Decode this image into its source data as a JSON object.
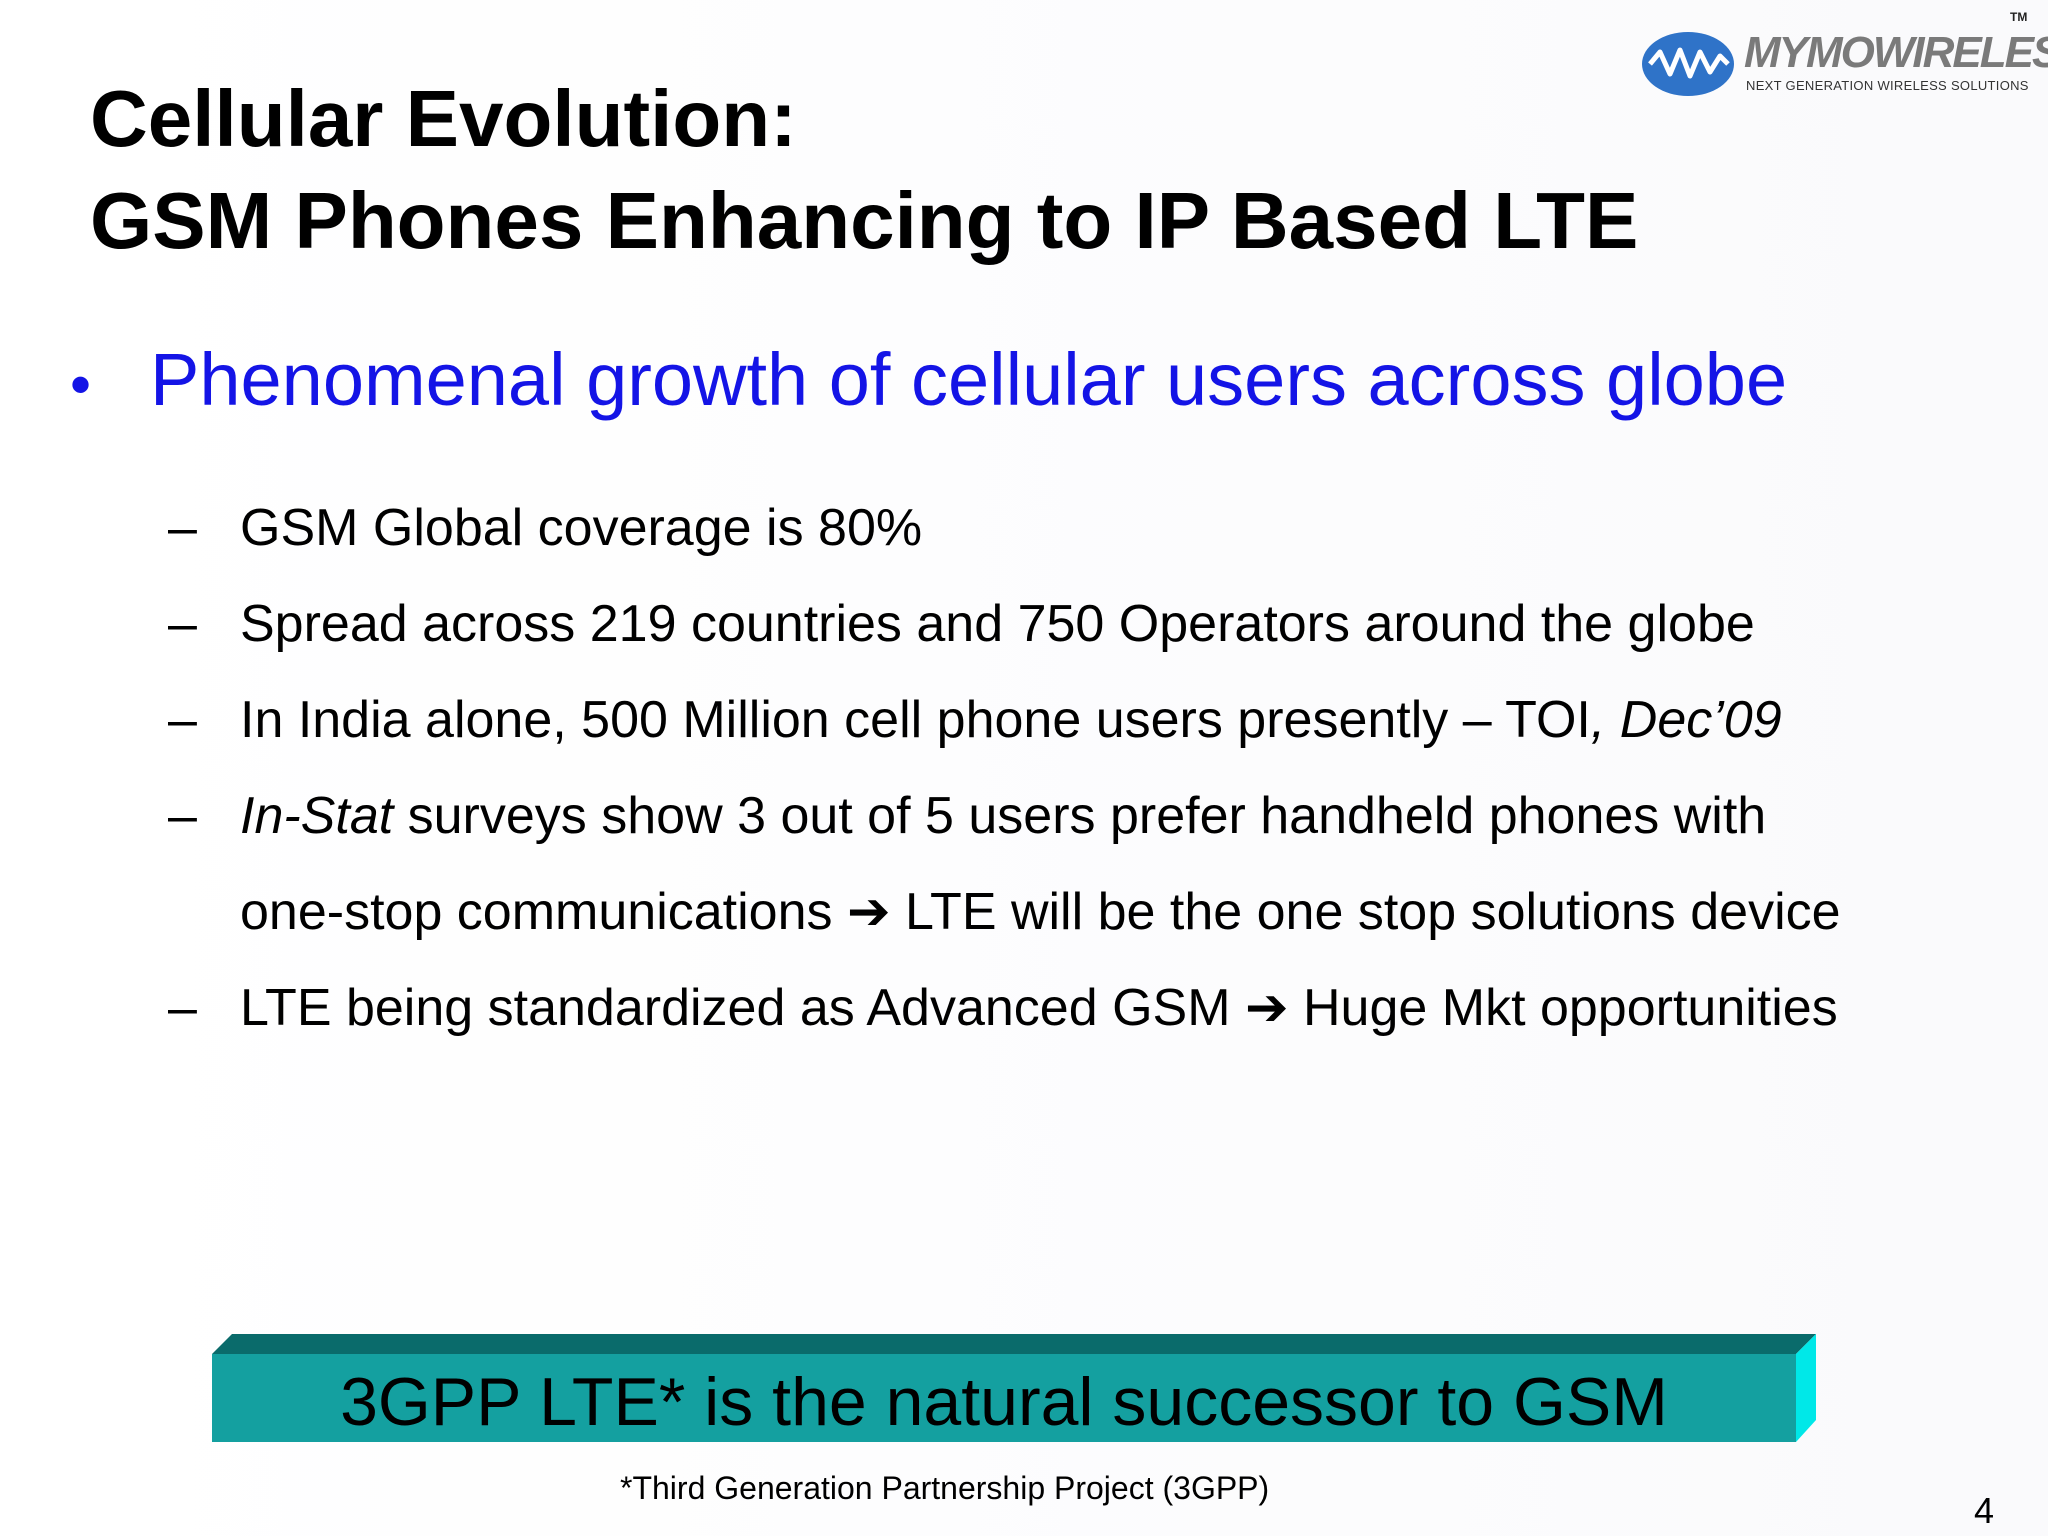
{
  "logo": {
    "name": "MYMOWIRELESS",
    "tm": "TM",
    "tagline": "NEXT GENERATION WIRELESS SOLUTIONS"
  },
  "title": {
    "line1": "Cellular Evolution:",
    "line2": "GSM Phones Enhancing to IP Based LTE"
  },
  "main_bullet": {
    "symbol": "•",
    "text": "Phenomenal growth of cellular users across globe"
  },
  "sub_bullets": {
    "dash": "–",
    "item1": "GSM Global coverage is 80%",
    "item2": "Spread across 219 countries and 750 Operators around the globe",
    "item3_text": "In India alone, 500 Million cell phone users presently – TOI",
    "item3_source": ", Dec’09",
    "item4_source": "In-Stat",
    "item4_text": " surveys show 3 out of 5 users prefer handheld phones with",
    "item4_cont_a": "one-stop communications ",
    "arrow": "➔",
    "item4_cont_b": " LTE will be the one stop solutions device",
    "item5_a": "LTE being standardized as Advanced GSM ",
    "item5_b": " Huge Mkt opportunities"
  },
  "banner": {
    "text": "3GPP LTE* is the natural successor to GSM"
  },
  "footnote": "*Third Generation Partnership Project (3GPP)",
  "page_number": "4",
  "colors": {
    "title": "#000000",
    "main_bullet": "#1414e6",
    "banner_face": "#14a0a0",
    "banner_top": "#0a6b6b",
    "banner_side": "#00e8e8",
    "logo_oval": "#2f73c8"
  }
}
